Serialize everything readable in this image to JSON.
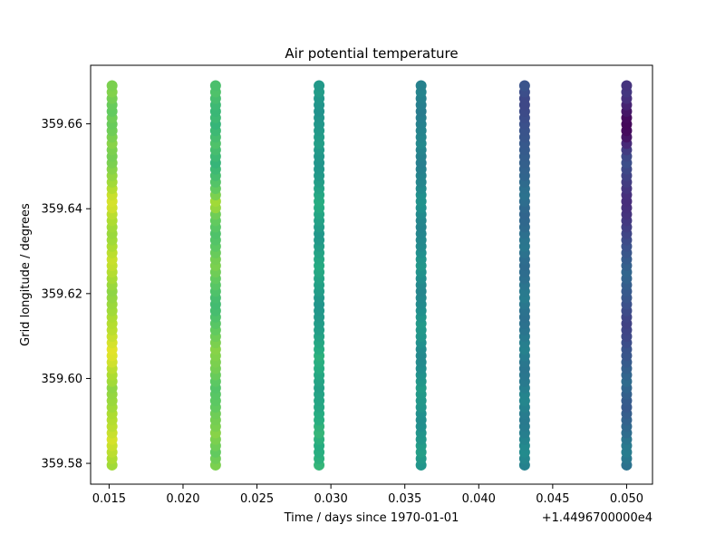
{
  "chart_data": {
    "type": "scatter",
    "title": "Air potential temperature",
    "xlabel": "Time / days since 1970-01-01",
    "ylabel": "Grid longitude / degrees",
    "x_offset_label": "+1.4496700000e4",
    "xlim": [
      14496.71375,
      14496.75175
    ],
    "ylim": [
      359.5751,
      359.6738
    ],
    "x_ticks": [
      {
        "value": 14496.715,
        "label": "0.015"
      },
      {
        "value": 14496.72,
        "label": "0.020"
      },
      {
        "value": 14496.725,
        "label": "0.025"
      },
      {
        "value": 14496.73,
        "label": "0.030"
      },
      {
        "value": 14496.735,
        "label": "0.035"
      },
      {
        "value": 14496.74,
        "label": "0.040"
      },
      {
        "value": 14496.745,
        "label": "0.045"
      },
      {
        "value": 14496.75,
        "label": "0.050"
      }
    ],
    "y_ticks": [
      {
        "value": 359.58,
        "label": "359.58"
      },
      {
        "value": 359.6,
        "label": "359.60"
      },
      {
        "value": 359.62,
        "label": "359.62"
      },
      {
        "value": 359.64,
        "label": "359.64"
      },
      {
        "value": 359.66,
        "label": "359.66"
      }
    ],
    "colormap": "viridis",
    "grid": false,
    "legend": "none",
    "series": [
      {
        "x": 14496.7152,
        "y_range": [
          359.5796,
          359.669
        ],
        "points": 60,
        "color_values": [
          0.86,
          0.88,
          0.9,
          0.92,
          0.94,
          0.92,
          0.9,
          0.89,
          0.88,
          0.86,
          0.85,
          0.84,
          0.83,
          0.86,
          0.88,
          0.9,
          0.93,
          0.95,
          0.96,
          0.94,
          0.92,
          0.9,
          0.89,
          0.88,
          0.86,
          0.85,
          0.84,
          0.83,
          0.85,
          0.87,
          0.89,
          0.91,
          0.92,
          0.9,
          0.88,
          0.86,
          0.85,
          0.86,
          0.88,
          0.9,
          0.93,
          0.94,
          0.92,
          0.89,
          0.86,
          0.84,
          0.82,
          0.8,
          0.79,
          0.8,
          0.82,
          0.8,
          0.78,
          0.77,
          0.78,
          0.76,
          0.77,
          0.79,
          0.81,
          0.8
        ]
      },
      {
        "x": 14496.7222,
        "y_range": [
          359.5796,
          359.669
        ],
        "points": 60,
        "color_values": [
          0.8,
          0.78,
          0.76,
          0.78,
          0.8,
          0.82,
          0.8,
          0.79,
          0.78,
          0.76,
          0.75,
          0.74,
          0.73,
          0.75,
          0.77,
          0.79,
          0.8,
          0.81,
          0.82,
          0.8,
          0.78,
          0.76,
          0.74,
          0.72,
          0.7,
          0.69,
          0.7,
          0.72,
          0.74,
          0.76,
          0.78,
          0.8,
          0.79,
          0.77,
          0.75,
          0.73,
          0.72,
          0.74,
          0.76,
          0.78,
          0.84,
          0.86,
          0.8,
          0.76,
          0.73,
          0.7,
          0.68,
          0.66,
          0.68,
          0.7,
          0.72,
          0.7,
          0.68,
          0.66,
          0.68,
          0.67,
          0.68,
          0.7,
          0.72,
          0.71
        ]
      },
      {
        "x": 14496.7292,
        "y_range": [
          359.5796,
          359.669
        ],
        "points": 60,
        "color_values": [
          0.66,
          0.64,
          0.63,
          0.62,
          0.64,
          0.66,
          0.65,
          0.63,
          0.62,
          0.6,
          0.59,
          0.58,
          0.57,
          0.58,
          0.6,
          0.62,
          0.63,
          0.64,
          0.62,
          0.6,
          0.58,
          0.56,
          0.55,
          0.54,
          0.53,
          0.52,
          0.53,
          0.55,
          0.57,
          0.58,
          0.6,
          0.61,
          0.6,
          0.58,
          0.56,
          0.54,
          0.53,
          0.55,
          0.57,
          0.59,
          0.61,
          0.62,
          0.6,
          0.58,
          0.56,
          0.54,
          0.53,
          0.52,
          0.53,
          0.54,
          0.56,
          0.55,
          0.54,
          0.53,
          0.52,
          0.51,
          0.52,
          0.53,
          0.55,
          0.54
        ]
      },
      {
        "x": 14496.7361,
        "y_range": [
          359.5796,
          359.669
        ],
        "points": 60,
        "color_values": [
          0.52,
          0.54,
          0.56,
          0.55,
          0.53,
          0.52,
          0.5,
          0.49,
          0.5,
          0.52,
          0.53,
          0.54,
          0.55,
          0.53,
          0.51,
          0.49,
          0.48,
          0.47,
          0.48,
          0.5,
          0.52,
          0.53,
          0.54,
          0.52,
          0.5,
          0.48,
          0.47,
          0.46,
          0.47,
          0.49,
          0.51,
          0.53,
          0.52,
          0.5,
          0.48,
          0.47,
          0.46,
          0.45,
          0.46,
          0.48,
          0.5,
          0.51,
          0.5,
          0.48,
          0.46,
          0.45,
          0.44,
          0.43,
          0.44,
          0.45,
          0.47,
          0.46,
          0.45,
          0.44,
          0.43,
          0.42,
          0.43,
          0.44,
          0.45,
          0.44
        ]
      },
      {
        "x": 14496.7431,
        "y_range": [
          359.5796,
          359.669
        ],
        "points": 60,
        "color_values": [
          0.44,
          0.46,
          0.48,
          0.47,
          0.45,
          0.43,
          0.42,
          0.41,
          0.42,
          0.44,
          0.46,
          0.45,
          0.43,
          0.41,
          0.4,
          0.39,
          0.4,
          0.42,
          0.44,
          0.43,
          0.41,
          0.39,
          0.38,
          0.37,
          0.38,
          0.4,
          0.42,
          0.41,
          0.39,
          0.37,
          0.36,
          0.35,
          0.36,
          0.38,
          0.4,
          0.39,
          0.37,
          0.35,
          0.34,
          0.33,
          0.34,
          0.36,
          0.38,
          0.37,
          0.35,
          0.33,
          0.32,
          0.31,
          0.3,
          0.29,
          0.28,
          0.27,
          0.26,
          0.25,
          0.24,
          0.23,
          0.22,
          0.22,
          0.24,
          0.26
        ]
      },
      {
        "x": 14496.75,
        "y_range": [
          359.5796,
          359.669
        ],
        "points": 60,
        "color_values": [
          0.38,
          0.4,
          0.42,
          0.41,
          0.39,
          0.36,
          0.34,
          0.32,
          0.3,
          0.28,
          0.29,
          0.31,
          0.33,
          0.35,
          0.33,
          0.31,
          0.29,
          0.27,
          0.26,
          0.24,
          0.22,
          0.21,
          0.2,
          0.21,
          0.23,
          0.25,
          0.27,
          0.28,
          0.3,
          0.32,
          0.33,
          0.31,
          0.29,
          0.27,
          0.25,
          0.23,
          0.21,
          0.19,
          0.17,
          0.15,
          0.14,
          0.13,
          0.14,
          0.16,
          0.18,
          0.2,
          0.22,
          0.24,
          0.22,
          0.18,
          0.12,
          0.06,
          0.03,
          0.02,
          0.03,
          0.06,
          0.1,
          0.14,
          0.16,
          0.15
        ]
      }
    ]
  }
}
